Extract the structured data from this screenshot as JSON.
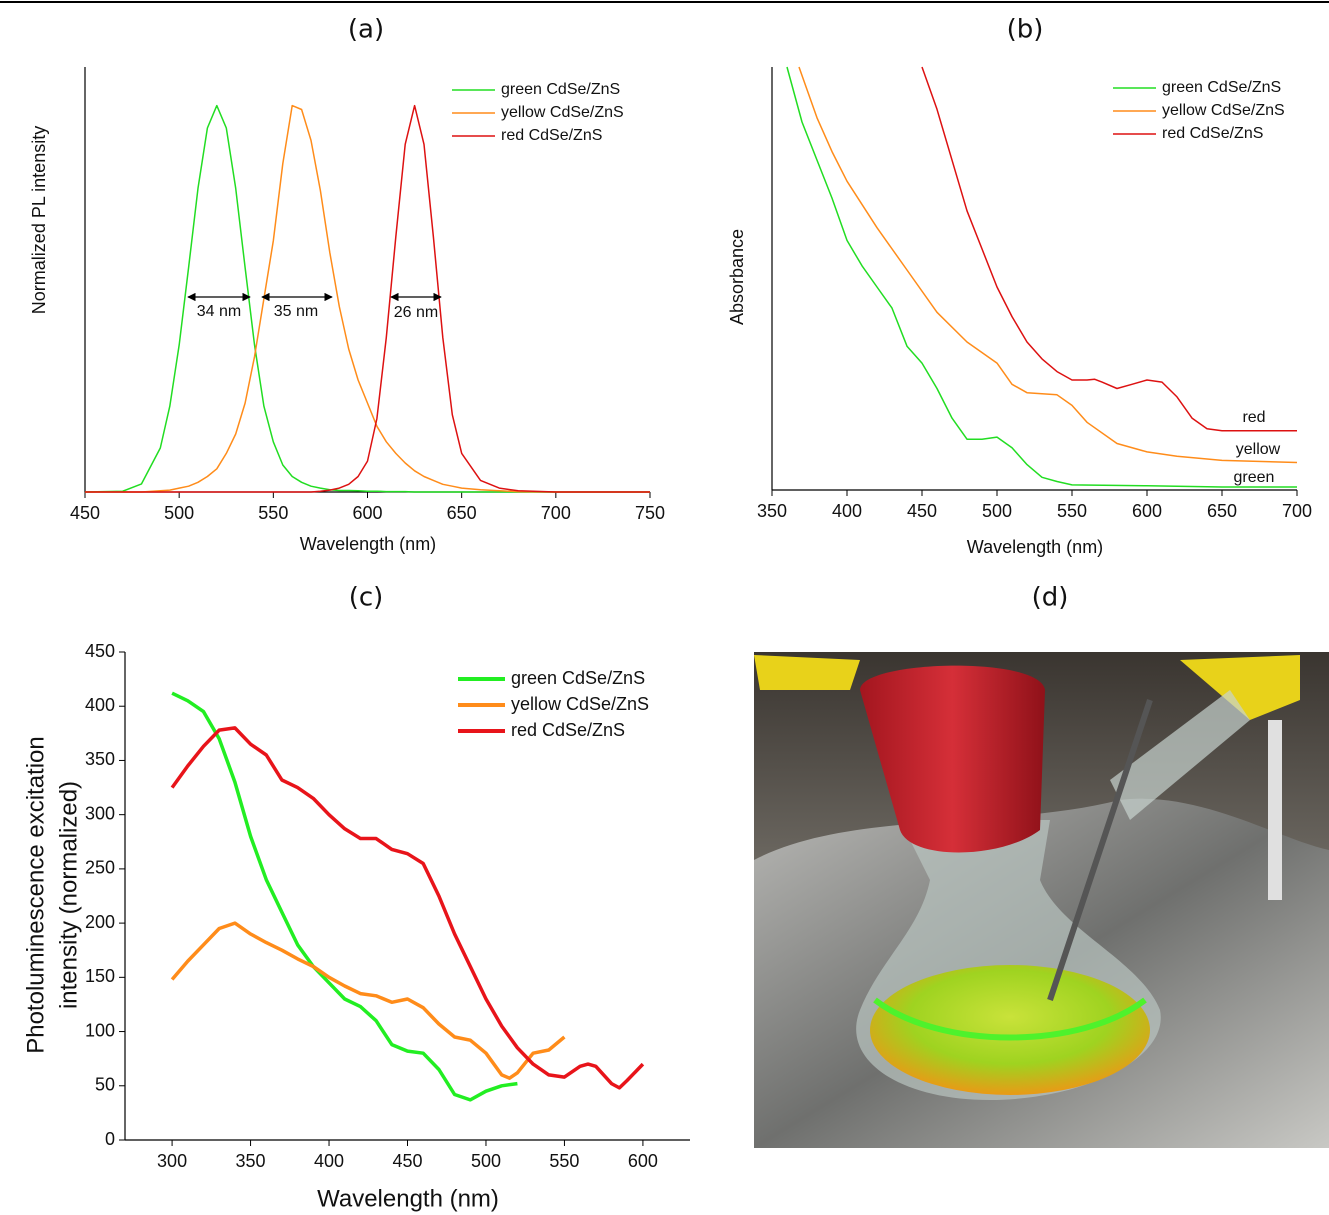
{
  "chart_data": [
    {
      "type": "line",
      "title": "(a)",
      "xlabel": "Wavelength (nm)",
      "ylabel": "Normalized PL intensity",
      "xlim": [
        450,
        750
      ],
      "xticks": [
        450,
        500,
        550,
        600,
        650,
        700,
        750
      ],
      "ylim": [
        0,
        1.1
      ],
      "legend": "upper right",
      "x": [
        450,
        470,
        480,
        490,
        495,
        500,
        505,
        510,
        515,
        520,
        525,
        530,
        535,
        540,
        545,
        550,
        555,
        560,
        565,
        570,
        575,
        580,
        585,
        590,
        595,
        600,
        605,
        610,
        615,
        620,
        625,
        630,
        635,
        640,
        645,
        650,
        660,
        670,
        680,
        700,
        750
      ],
      "series": [
        {
          "name": "green CdSe/ZnS",
          "color": "#22dd22",
          "values": [
            0,
            0.002,
            0.021,
            0.114,
            0.222,
            0.381,
            0.581,
            0.786,
            0.942,
            1,
            0.942,
            0.786,
            0.581,
            0.381,
            0.222,
            0.13,
            0.07,
            0.04,
            0.025,
            0.015,
            0.01,
            0.006,
            0.004,
            0.004,
            0.003,
            0.002,
            0.002,
            0.001,
            0.001,
            0.001,
            0,
            0,
            0,
            0,
            0,
            0,
            0,
            0,
            0,
            0,
            0
          ]
        },
        {
          "name": "yellow CdSe/ZnS",
          "color": "#ff8c1a",
          "values": [
            0,
            0,
            0,
            0.003,
            0.005,
            0.01,
            0.015,
            0.025,
            0.04,
            0.06,
            0.1,
            0.15,
            0.23,
            0.35,
            0.5,
            0.65,
            0.85,
            1,
            0.99,
            0.91,
            0.78,
            0.62,
            0.48,
            0.37,
            0.29,
            0.23,
            0.17,
            0.13,
            0.1,
            0.075,
            0.055,
            0.04,
            0.03,
            0.02,
            0.015,
            0.01,
            0.006,
            0.003,
            0.001,
            0,
            0
          ]
        },
        {
          "name": "red CdSe/ZnS",
          "color": "#dd1111",
          "values": [
            0,
            0,
            0,
            0,
            0,
            0,
            0,
            0,
            0,
            0,
            0,
            0,
            0,
            0,
            0,
            0,
            0,
            0,
            0,
            0,
            0.002,
            0.005,
            0.01,
            0.02,
            0.04,
            0.08,
            0.19,
            0.4,
            0.66,
            0.9,
            1,
            0.9,
            0.66,
            0.4,
            0.2,
            0.1,
            0.03,
            0.01,
            0.003,
            0,
            0
          ]
        }
      ],
      "annotations": [
        "34 nm",
        "35 nm",
        "26 nm"
      ]
    },
    {
      "type": "line",
      "title": "(b)",
      "xlabel": "Wavelength (nm)",
      "ylabel": "Absorbance",
      "xlim": [
        350,
        700
      ],
      "xticks": [
        350,
        400,
        450,
        500,
        550,
        600,
        650,
        700
      ],
      "ylim": [
        0,
        1
      ],
      "legend": "upper right",
      "series": [
        {
          "name": "green CdSe/ZnS",
          "color": "#22dd22",
          "x": [
            360,
            370,
            380,
            390,
            400,
            410,
            420,
            430,
            440,
            450,
            460,
            470,
            480,
            490,
            500,
            510,
            520,
            530,
            540,
            550,
            600,
            650,
            700
          ],
          "values": [
            1,
            0.87,
            0.78,
            0.69,
            0.59,
            0.53,
            0.48,
            0.43,
            0.34,
            0.3,
            0.24,
            0.17,
            0.12,
            0.12,
            0.125,
            0.1,
            0.06,
            0.03,
            0.02,
            0.012,
            0.01,
            0.007,
            0.007
          ]
        },
        {
          "name": "yellow CdSe/ZnS",
          "color": "#ff8c1a",
          "x": [
            368,
            370,
            380,
            390,
            400,
            420,
            440,
            460,
            480,
            500,
            510,
            520,
            540,
            550,
            560,
            580,
            600,
            620,
            650,
            700
          ],
          "values": [
            1,
            0.98,
            0.88,
            0.8,
            0.73,
            0.62,
            0.52,
            0.42,
            0.35,
            0.3,
            0.25,
            0.23,
            0.225,
            0.2,
            0.16,
            0.11,
            0.09,
            0.08,
            0.07,
            0.065
          ]
        },
        {
          "name": "red CdSe/ZnS",
          "color": "#dd1111",
          "x": [
            450,
            460,
            470,
            480,
            490,
            500,
            510,
            520,
            530,
            540,
            550,
            560,
            565,
            570,
            580,
            590,
            600,
            610,
            620,
            630,
            640,
            650,
            700
          ],
          "values": [
            1,
            0.9,
            0.78,
            0.66,
            0.57,
            0.48,
            0.41,
            0.35,
            0.31,
            0.28,
            0.26,
            0.26,
            0.262,
            0.255,
            0.24,
            0.25,
            0.26,
            0.255,
            0.22,
            0.17,
            0.145,
            0.14,
            0.14
          ]
        }
      ],
      "annotations": [
        "red",
        "yellow",
        "green"
      ]
    },
    {
      "type": "line",
      "title": "(c)",
      "xlabel": "Wavelength (nm)",
      "ylabel": [
        "Photoluminescence excitation",
        "intensity (normalized)"
      ],
      "xlim": [
        270,
        630
      ],
      "xticks": [
        300,
        350,
        400,
        450,
        500,
        550,
        600
      ],
      "ylim": [
        0,
        450
      ],
      "yticks": [
        0,
        50,
        100,
        150,
        200,
        250,
        300,
        350,
        400,
        450
      ],
      "legend": "upper right",
      "series": [
        {
          "name": "green CdSe/ZnS",
          "color": "#22ee22",
          "x": [
            300,
            310,
            320,
            330,
            340,
            350,
            360,
            370,
            380,
            390,
            400,
            410,
            420,
            430,
            440,
            450,
            460,
            470,
            480,
            490,
            500,
            510,
            520
          ],
          "values": [
            412,
            405,
            395,
            370,
            330,
            280,
            240,
            210,
            180,
            160,
            145,
            130,
            123,
            110,
            88,
            82,
            80,
            65,
            42,
            37,
            45,
            50,
            52
          ]
        },
        {
          "name": "yellow CdSe/ZnS",
          "color": "#ff8c1a",
          "x": [
            300,
            310,
            320,
            330,
            340,
            350,
            360,
            370,
            380,
            390,
            400,
            410,
            420,
            430,
            440,
            450,
            460,
            470,
            480,
            490,
            500,
            510,
            515,
            520,
            530,
            540,
            550
          ],
          "values": [
            148,
            165,
            180,
            195,
            200,
            190,
            182,
            175,
            167,
            160,
            150,
            142,
            135,
            133,
            127,
            130,
            122,
            107,
            95,
            92,
            80,
            60,
            57,
            62,
            80,
            83,
            95
          ]
        },
        {
          "name": "red CdSe/ZnS",
          "color": "#e8141a",
          "x": [
            300,
            310,
            320,
            330,
            340,
            350,
            360,
            370,
            380,
            390,
            400,
            410,
            420,
            430,
            440,
            450,
            460,
            470,
            480,
            490,
            500,
            510,
            520,
            530,
            540,
            550,
            560,
            565,
            570,
            580,
            585,
            590,
            600
          ],
          "values": [
            325,
            345,
            363,
            378,
            380,
            365,
            355,
            332,
            325,
            315,
            300,
            287,
            278,
            278,
            268,
            264,
            255,
            225,
            190,
            160,
            130,
            105,
            85,
            70,
            60,
            58,
            68,
            70,
            68,
            52,
            48,
            55,
            70
          ]
        }
      ]
    }
  ],
  "photo": {
    "title": "(d)"
  }
}
